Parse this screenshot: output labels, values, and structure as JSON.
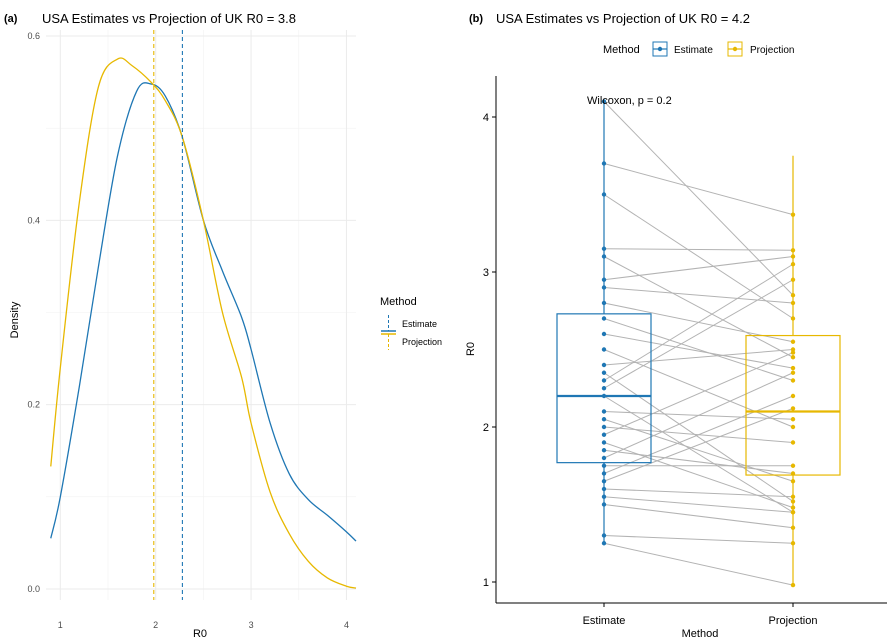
{
  "colors": {
    "estimate": "#1f77b4",
    "projection": "#e7b800",
    "pair_line": "#b3b3b3",
    "grid": "#ebebeb"
  },
  "panel_a": {
    "tag": "(a)",
    "title": "USA Estimates vs Projection of UK R0 = 3.8",
    "legend": {
      "title": "Method",
      "items": [
        "Estimate",
        "Projection"
      ]
    }
  },
  "panel_b": {
    "tag": "(b)",
    "title": "USA Estimates vs Projection of UK R0 = 4.2",
    "legend": {
      "title": "Method",
      "items": [
        "Estimate",
        "Projection"
      ]
    },
    "annotation": "Wilcoxon, p = 0.2"
  },
  "chart_data": [
    {
      "type": "line",
      "title": "USA Estimates vs Projection of UK R0 = 3.8",
      "xlabel": "R0",
      "ylabel": "Density",
      "xlim": [
        0.85,
        4.1
      ],
      "ylim": [
        0,
        0.6
      ],
      "xticks": [
        1,
        2,
        3,
        4
      ],
      "yticks": [
        0.0,
        0.2,
        0.4,
        0.6
      ],
      "ytick_labels": [
        "0.0",
        "0.2",
        "0.4",
        "0.6"
      ],
      "grid": true,
      "legend_position": "right",
      "series": [
        {
          "name": "Estimate",
          "x": [
            0.9,
            1.0,
            1.2,
            1.4,
            1.6,
            1.8,
            1.95,
            2.1,
            2.28,
            2.5,
            2.7,
            2.9,
            3.0,
            3.2,
            3.4,
            3.6,
            3.8,
            4.0,
            4.1
          ],
          "y": [
            0.055,
            0.1,
            0.22,
            0.35,
            0.47,
            0.54,
            0.548,
            0.535,
            0.49,
            0.4,
            0.345,
            0.295,
            0.26,
            0.18,
            0.125,
            0.097,
            0.08,
            0.062,
            0.052
          ],
          "mean": 2.28
        },
        {
          "name": "Projection",
          "x": [
            0.9,
            1.0,
            1.2,
            1.4,
            1.6,
            1.75,
            1.95,
            2.1,
            2.28,
            2.5,
            2.7,
            2.9,
            3.0,
            3.2,
            3.4,
            3.6,
            3.8,
            4.0,
            4.1
          ],
          "y": [
            0.133,
            0.24,
            0.42,
            0.545,
            0.575,
            0.568,
            0.55,
            0.53,
            0.49,
            0.4,
            0.3,
            0.23,
            0.18,
            0.105,
            0.06,
            0.03,
            0.012,
            0.003,
            0.001
          ],
          "mean": 1.98
        }
      ]
    },
    {
      "type": "box",
      "title": "USA Estimates vs Projection of UK R0 = 4.2",
      "xlabel": "Method",
      "ylabel": "R0",
      "categories": [
        "Estimate",
        "Projection"
      ],
      "ylim": [
        0.85,
        4.25
      ],
      "yticks": [
        1,
        2,
        3,
        4
      ],
      "grid": false,
      "legend_position": "top",
      "boxes": [
        {
          "name": "Estimate",
          "min": 1.25,
          "q1": 1.77,
          "median": 2.2,
          "q3": 2.73,
          "max": 4.1
        },
        {
          "name": "Projection",
          "min": 0.98,
          "q1": 1.69,
          "median": 2.1,
          "q3": 2.59,
          "max": 3.75
        }
      ],
      "pairs": [
        [
          4.1,
          2.85
        ],
        [
          3.7,
          3.37
        ],
        [
          3.5,
          2.7
        ],
        [
          3.15,
          3.14
        ],
        [
          3.1,
          2.45
        ],
        [
          2.95,
          3.1
        ],
        [
          2.9,
          2.8
        ],
        [
          2.8,
          2.55
        ],
        [
          2.7,
          2.3
        ],
        [
          2.6,
          2.38
        ],
        [
          2.5,
          2.0
        ],
        [
          2.4,
          2.5
        ],
        [
          2.3,
          3.05
        ],
        [
          2.2,
          1.45
        ],
        [
          2.1,
          2.05
        ],
        [
          2.05,
          1.65
        ],
        [
          2.0,
          1.9
        ],
        [
          1.95,
          2.48
        ],
        [
          1.9,
          1.48
        ],
        [
          1.8,
          2.35
        ],
        [
          1.75,
          1.75
        ],
        [
          1.7,
          2.2
        ],
        [
          1.6,
          1.55
        ],
        [
          1.55,
          1.45
        ],
        [
          1.5,
          1.35
        ],
        [
          1.3,
          1.25
        ],
        [
          1.25,
          0.98
        ],
        [
          1.85,
          1.7
        ],
        [
          2.25,
          2.95
        ],
        [
          1.65,
          2.12
        ],
        [
          2.35,
          1.52
        ]
      ]
    }
  ]
}
